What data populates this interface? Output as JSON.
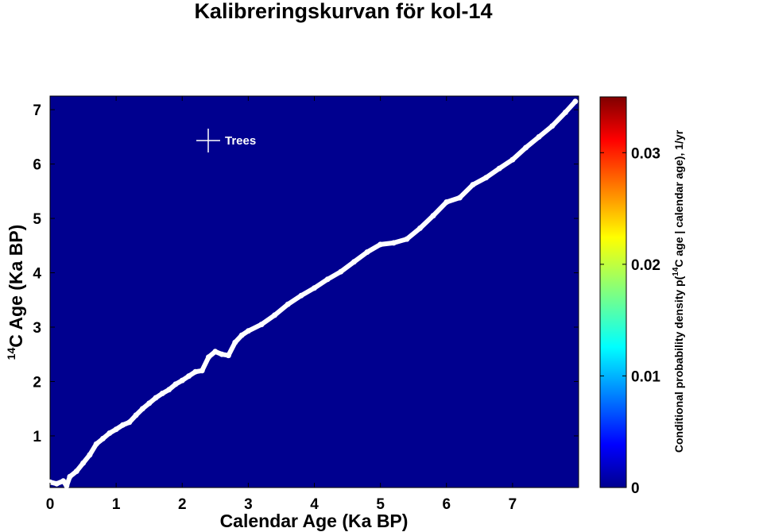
{
  "chart_data": {
    "type": "heatmap",
    "title": "Kalibreringskurvan för kol-14",
    "xlabel": "Calendar Age (Ka BP)",
    "ylabel_super": "14",
    "ylabel_main": "C Age (Ka BP)",
    "colorbar_label_prefix": "Conditional probability density p(",
    "colorbar_label_super": "14",
    "colorbar_label_suffix": "C age | calendar age), 1/yr",
    "background_color": "#00008f",
    "curve_color": "#ffffff",
    "xlim": [
      0,
      8.0
    ],
    "ylim": [
      0.05,
      7.25
    ],
    "x_ticks": [
      "0",
      "1",
      "2",
      "3",
      "4",
      "5",
      "6",
      "7"
    ],
    "y_ticks": [
      "1",
      "2",
      "3",
      "4",
      "5",
      "6",
      "7"
    ],
    "colorbar_range": [
      0,
      0.035
    ],
    "colorbar_ticks": [
      "0",
      "0.01",
      "0.02",
      "0.03"
    ],
    "colormap": "jet",
    "legend": {
      "label": "Trees",
      "marker": "+",
      "position": "top-left"
    },
    "series": [
      {
        "name": "Trees",
        "x": [
          0.0,
          0.1,
          0.2,
          0.25,
          0.3,
          0.4,
          0.5,
          0.6,
          0.7,
          0.8,
          0.9,
          1.0,
          1.1,
          1.2,
          1.3,
          1.4,
          1.5,
          1.6,
          1.7,
          1.8,
          1.9,
          2.0,
          2.1,
          2.2,
          2.3,
          2.4,
          2.5,
          2.6,
          2.7,
          2.8,
          2.9,
          3.0,
          3.2,
          3.4,
          3.6,
          3.8,
          4.0,
          4.2,
          4.4,
          4.6,
          4.8,
          5.0,
          5.2,
          5.4,
          5.6,
          5.8,
          6.0,
          6.2,
          6.4,
          6.6,
          6.8,
          7.0,
          7.2,
          7.4,
          7.6,
          7.8,
          7.95
        ],
        "y": [
          0.15,
          0.12,
          0.17,
          0.08,
          0.25,
          0.35,
          0.5,
          0.65,
          0.85,
          0.95,
          1.05,
          1.12,
          1.2,
          1.25,
          1.38,
          1.5,
          1.6,
          1.7,
          1.78,
          1.85,
          1.95,
          2.02,
          2.1,
          2.18,
          2.2,
          2.45,
          2.55,
          2.5,
          2.48,
          2.72,
          2.85,
          2.93,
          3.05,
          3.22,
          3.42,
          3.58,
          3.72,
          3.88,
          4.02,
          4.2,
          4.38,
          4.52,
          4.55,
          4.62,
          4.82,
          5.05,
          5.3,
          5.38,
          5.62,
          5.75,
          5.92,
          6.08,
          6.3,
          6.5,
          6.7,
          6.95,
          7.15
        ]
      }
    ]
  }
}
